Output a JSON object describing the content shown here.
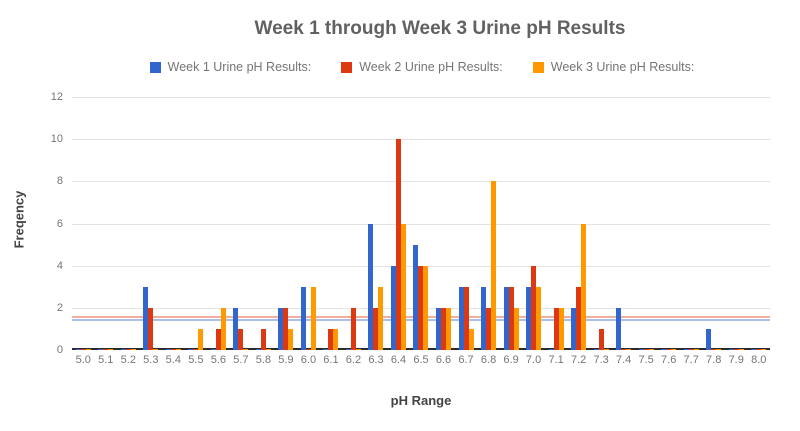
{
  "title": "Week 1 through Week 3 Urine pH Results",
  "legend": {
    "items": [
      {
        "label": "Week 1 Urine pH Results:",
        "color": "#3366CC"
      },
      {
        "label": "Week 2 Urine pH Results:",
        "color": "#DC3912"
      },
      {
        "label": "Week 3 Urine pH Results:",
        "color": "#FF9900"
      }
    ]
  },
  "chart_data": {
    "type": "bar",
    "title": "Week 1 through Week 3 Urine pH Results",
    "xlabel": "pH Range",
    "ylabel": "Freqency",
    "ylim": [
      0,
      12
    ],
    "y_ticks": [
      0,
      2,
      4,
      6,
      8,
      10,
      12
    ],
    "grid": true,
    "legend_position": "top",
    "categories": [
      "5.0",
      "5.1",
      "5.2",
      "5.3",
      "5.4",
      "5.5",
      "5.6",
      "5.7",
      "5.8",
      "5.9",
      "6.0",
      "6.1",
      "6.2",
      "6.3",
      "6.4",
      "6.5",
      "6.6",
      "6.7",
      "6.8",
      "6.9",
      "7.0",
      "7.1",
      "7.2",
      "7.3",
      "7.4",
      "7.5",
      "7.6",
      "7.7",
      "7.8",
      "7.9",
      "8.0"
    ],
    "series": [
      {
        "name": "Week 1 Urine pH Results:",
        "color": "#3366CC",
        "values": [
          0,
          0,
          0,
          3,
          0,
          0,
          0,
          2,
          0,
          2,
          3,
          0,
          0,
          6,
          4,
          5,
          2,
          3,
          3,
          3,
          3,
          0,
          2,
          0,
          2,
          0,
          0,
          0,
          1,
          0,
          0
        ]
      },
      {
        "name": "Week 2 Urine pH Results:",
        "color": "#DC3912",
        "values": [
          0,
          0,
          0,
          2,
          0,
          0,
          1,
          1,
          1,
          2,
          0,
          1,
          2,
          2,
          10,
          4,
          2,
          3,
          2,
          3,
          4,
          2,
          3,
          1,
          0,
          0,
          0,
          0,
          0,
          0,
          0
        ]
      },
      {
        "name": "Week 3 Urine pH Results:",
        "color": "#FF9900",
        "values": [
          0,
          0,
          0,
          0,
          0,
          1,
          2,
          0,
          0,
          1,
          3,
          1,
          0,
          3,
          6,
          4,
          2,
          1,
          8,
          2,
          3,
          2,
          6,
          0,
          0,
          0,
          0,
          0,
          0,
          0,
          0
        ]
      }
    ],
    "trendlines": [
      {
        "series": "Week 2 Urine pH Results:",
        "value": 1.55,
        "color": "#F3AF9E"
      },
      {
        "series": "Week 1 Urine pH Results:",
        "value": 1.4,
        "color": "#A9BEE8"
      }
    ]
  }
}
